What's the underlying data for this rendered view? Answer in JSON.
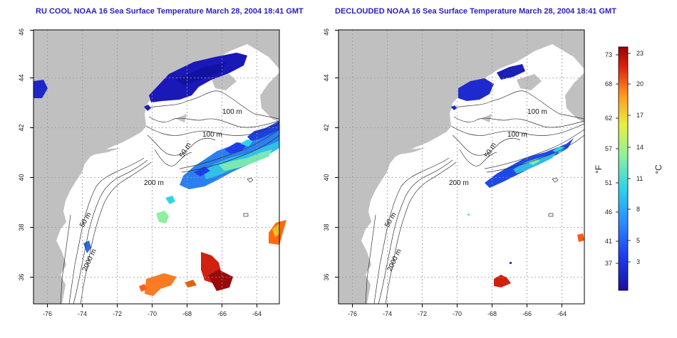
{
  "panels": [
    {
      "id": "left",
      "title": "RU COOL NOAA 16 Sea Surface Temperature March 28, 2004 18:41 GMT"
    },
    {
      "id": "right",
      "title": "DECLOUDED NOAA 16 Sea Surface Temperature March 28, 2004 18:41 GMT"
    }
  ],
  "map_axes": {
    "x_ticks": [
      "-76",
      "-74",
      "-72",
      "-70",
      "-68",
      "-66",
      "-64"
    ],
    "y_ticks": [
      "36",
      "38",
      "40",
      "42",
      "44",
      "46"
    ]
  },
  "contour_labels": [
    "100 m",
    "100 m",
    "50 m",
    "200 m",
    "50 m",
    "2000 m"
  ],
  "colorbar": {
    "fahrenheit_ticks": [
      "73",
      "68",
      "62",
      "57",
      "51",
      "46",
      "41",
      "37"
    ],
    "celsius_ticks": [
      "23",
      "20",
      "17",
      "14",
      "11",
      "8",
      "5",
      "3"
    ],
    "fahrenheit_label": "°F",
    "celsius_label": "°C",
    "colors": [
      "#1a10a0",
      "#1e3cf0",
      "#2a8cff",
      "#2ed4e8",
      "#8cf0a0",
      "#e8f040",
      "#ff9a20",
      "#e02810",
      "#9a0000"
    ]
  },
  "colors": {
    "land": "#c0c0c0",
    "ocean": "#ffffff",
    "title": "#2a1fb8",
    "contour": "#333333",
    "grid": "#9a9a9a"
  }
}
